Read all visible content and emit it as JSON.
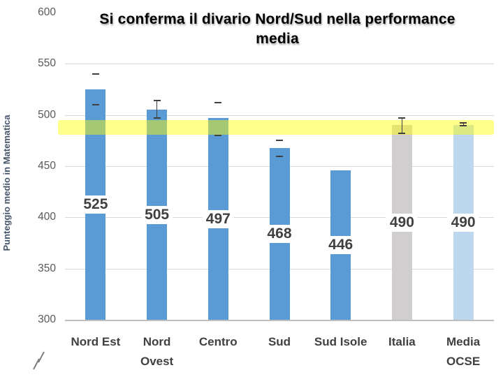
{
  "chart_data": {
    "type": "bar",
    "title": "Si conferma il divario Nord/Sud nella performance media",
    "title_lines": [
      "Si conferma il divario Nord/Sud nella performance",
      "media"
    ],
    "xlabel": "",
    "ylabel": "Punteggio medio in Matematica",
    "ylim": [
      300,
      600
    ],
    "yticks": [
      600,
      550,
      500,
      450,
      400,
      350,
      300
    ],
    "gridline_values": [
      550,
      500,
      450,
      400,
      350
    ],
    "grid": true,
    "legend": false,
    "axis_break": true,
    "categories": [
      "Nord Est",
      "Nord Ovest",
      "Centro",
      "Sud",
      "Sud Isole",
      "Italia",
      "Media OCSE"
    ],
    "label_lines": [
      "Nord Est",
      "Nord\nOvest",
      "Centro",
      "Sud",
      "Sud Isole",
      "Italia",
      "Media\nOCSE"
    ],
    "values": [
      525,
      505,
      497,
      468,
      446,
      490,
      490
    ],
    "bar_colors": [
      "#5B9BD5",
      "#5B9BD5",
      "#5B9BD5",
      "#5B9BD5",
      "#5B9BD5",
      "#D0CECE",
      "#BDD7EE"
    ],
    "error_bars": [
      {
        "top": 541,
        "bottom": 511,
        "line": false
      },
      {
        "top": 515,
        "bottom": 498,
        "line": true
      },
      {
        "top": 513,
        "bottom": 481,
        "line": false
      },
      {
        "top": 476,
        "bottom": 460,
        "line": false
      },
      null,
      {
        "top": 498,
        "bottom": 483,
        "line": true
      },
      {
        "top": 493,
        "bottom": 490,
        "line": true
      }
    ],
    "highlight_band": {
      "from": 481,
      "to": 495,
      "color": "#FFFF00",
      "opacity": 0.45
    }
  },
  "colors": {
    "bar_blue": "#5B9BD5",
    "bar_gray": "#D0CECE",
    "bar_light_blue": "#BDD7EE",
    "highlight_yellow": "#FFFF00",
    "gridline": "#D9D9D9",
    "axis_line": "#BFBFBF",
    "tick_label": "#595959",
    "category_label": "#404040",
    "data_label": "#404040",
    "error_bar": "#404040",
    "y_axis_title": "#44546A",
    "title_text": "#000000"
  }
}
